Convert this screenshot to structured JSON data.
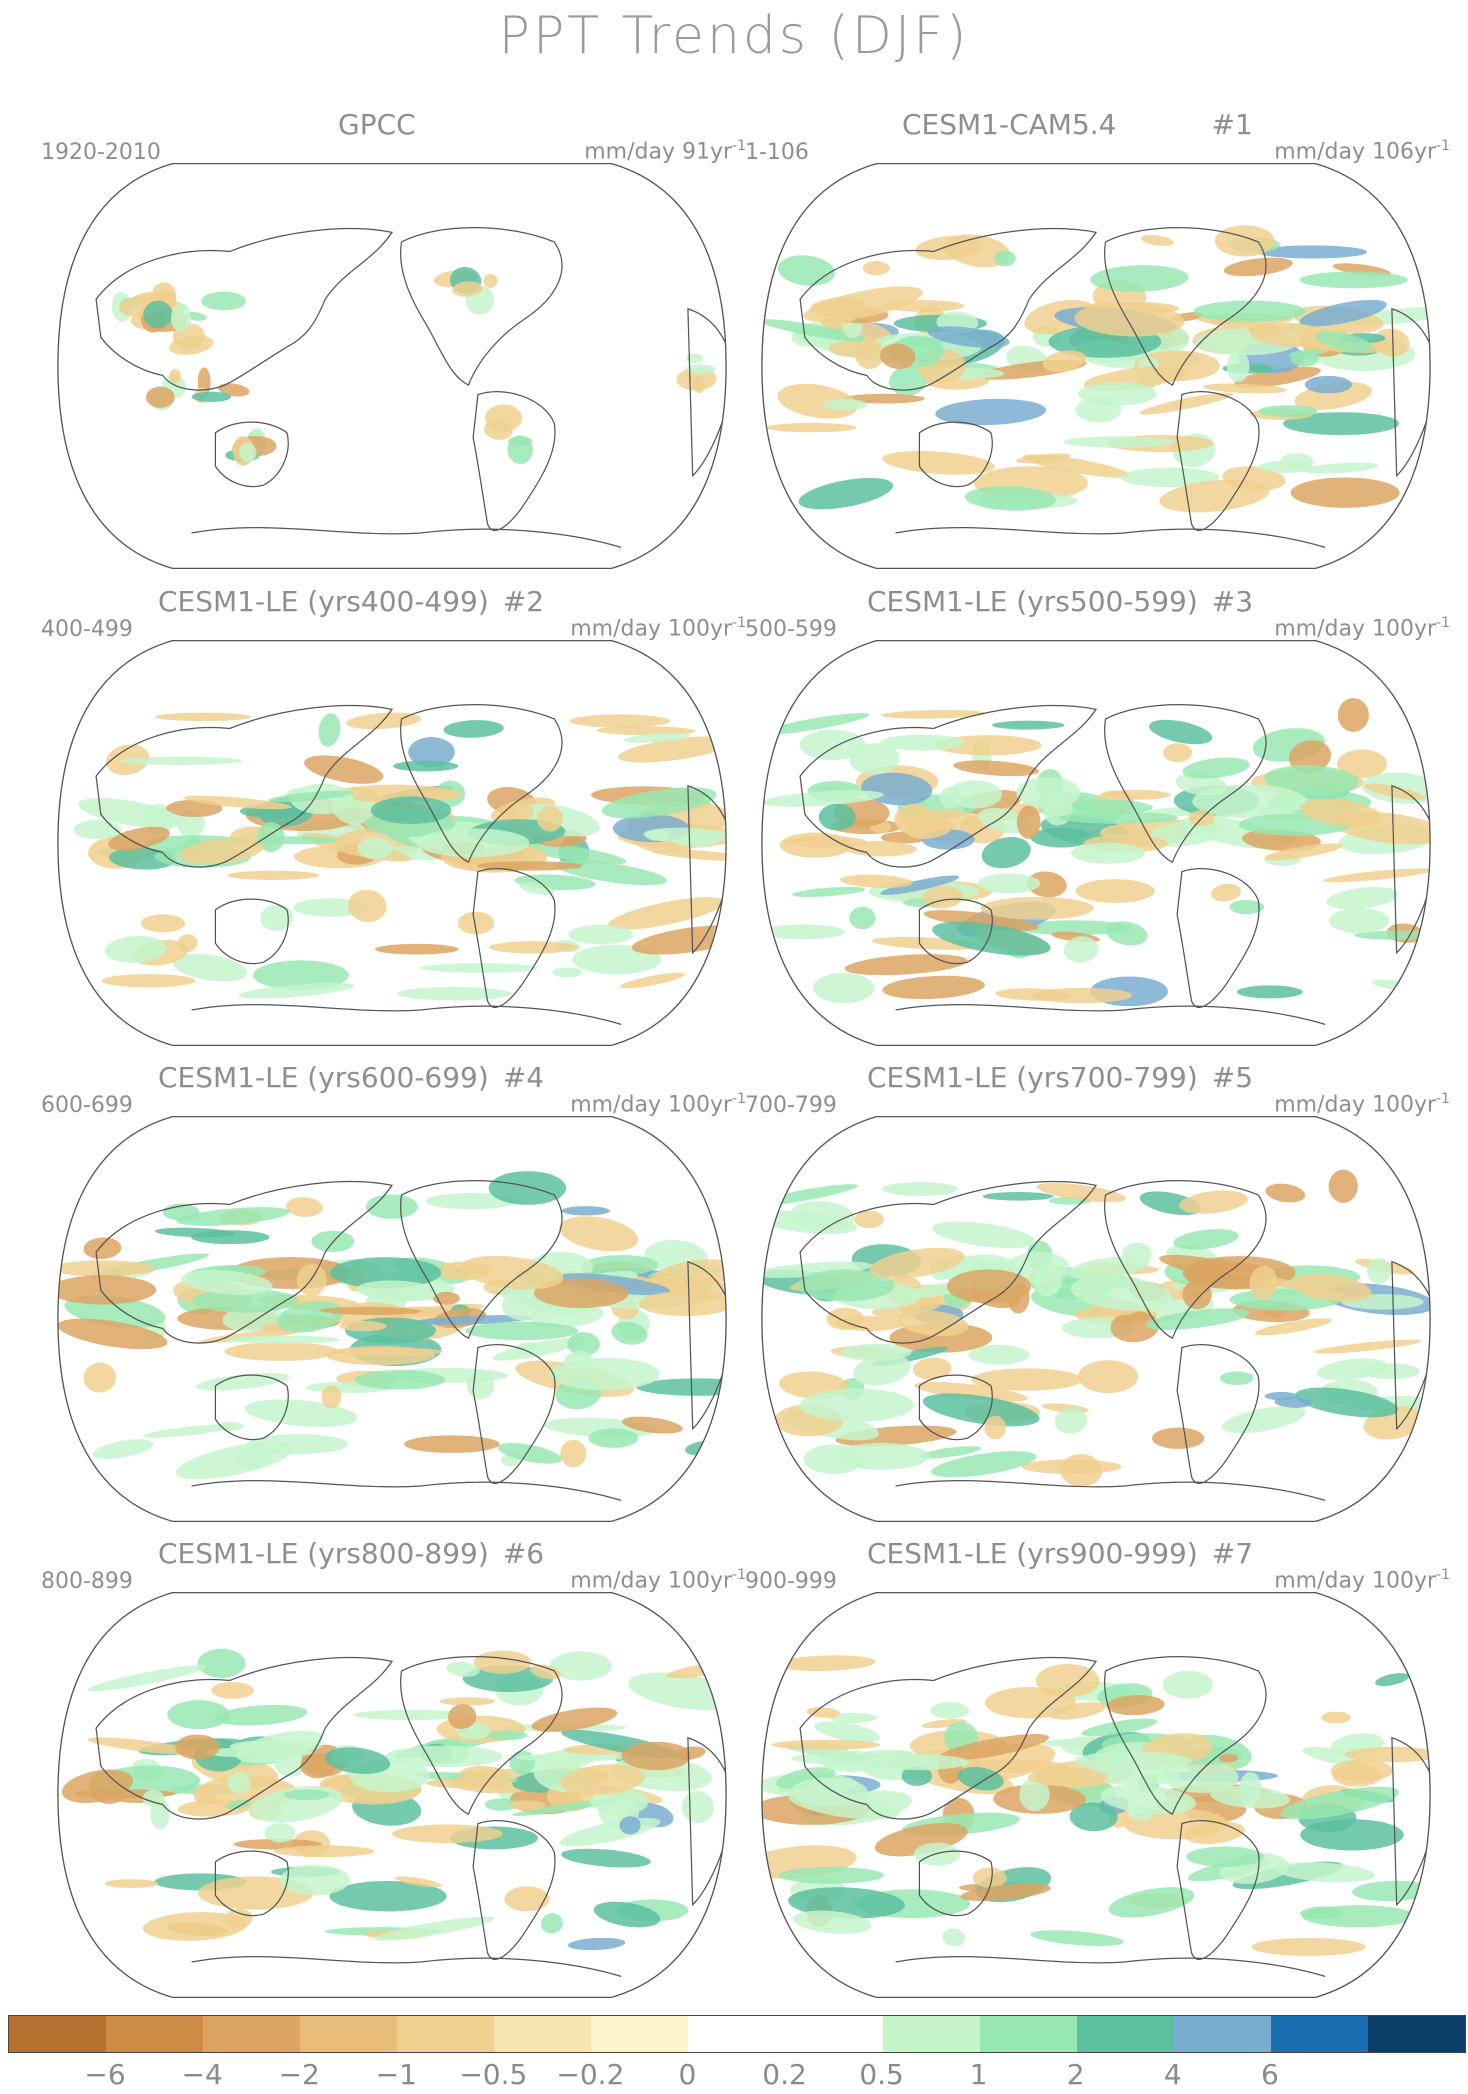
{
  "title": "PPT Trends (DJF)",
  "panels": [
    {
      "title": "GPCC",
      "number": "",
      "range": "1920-2010",
      "units": "mm/day 91yr",
      "units_exp": "-1"
    },
    {
      "title": "CESM1-CAM5.4",
      "number": "#1",
      "range": "1-106",
      "units": "mm/day 106yr",
      "units_exp": "-1"
    },
    {
      "title": "CESM1-LE (yrs400-499)",
      "number": "#2",
      "range": "400-499",
      "units": "mm/day 100yr",
      "units_exp": "-1"
    },
    {
      "title": "CESM1-LE (yrs500-599)",
      "number": "#3",
      "range": "500-599",
      "units": "mm/day 100yr",
      "units_exp": "-1"
    },
    {
      "title": "CESM1-LE (yrs600-699)",
      "number": "#4",
      "range": "600-699",
      "units": "mm/day 100yr",
      "units_exp": "-1"
    },
    {
      "title": "CESM1-LE (yrs700-799)",
      "number": "#5",
      "range": "700-799",
      "units": "mm/day 100yr",
      "units_exp": "-1"
    },
    {
      "title": "CESM1-LE (yrs800-899)",
      "number": "#6",
      "range": "800-899",
      "units": "mm/day 100yr",
      "units_exp": "-1"
    },
    {
      "title": "CESM1-LE (yrs900-999)",
      "number": "#7",
      "range": "900-999",
      "units": "mm/day 100yr",
      "units_exp": "-1"
    }
  ],
  "colorbar": {
    "colors": [
      "#b5702f",
      "#cd8a45",
      "#dca463",
      "#e8bc79",
      "#f0d08f",
      "#f6e4ae",
      "#fbf3c9",
      "#ffffff",
      "#ffffff",
      "#c6f5cc",
      "#98e8b3",
      "#5cc0a0",
      "#7aaed0",
      "#1a6fb0",
      "#0c3e6a"
    ],
    "ticks": [
      "−6",
      "−4",
      "−2",
      "−1",
      "−0.5",
      "−0.2",
      "0",
      "0.2",
      "0.5",
      "1",
      "2",
      "4",
      "6"
    ]
  },
  "colors": {
    "brown": "#dca463",
    "tan": "#f0d08f",
    "light_green": "#c6f5cc",
    "green": "#98e8b3",
    "teal": "#5cc0a0",
    "blue": "#7aaed0",
    "coast": "#555555"
  }
}
